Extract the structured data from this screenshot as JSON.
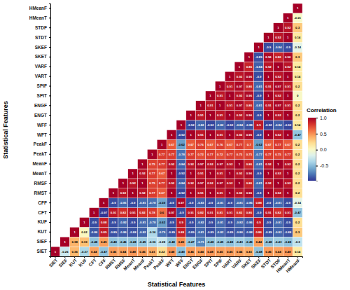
{
  "chart_data": {
    "type": "heatmap",
    "x_label": "Statistical Features",
    "y_label": "Statistical Features",
    "categories": [
      "SIET",
      "SIEF",
      "KUT",
      "KUF",
      "CFT",
      "CFF",
      "RMST",
      "RMSF",
      "MeanT",
      "MeanF",
      "PeakT",
      "PeakF",
      "WFT",
      "WFF",
      "ENGT",
      "ENGF",
      "SPIT",
      "SPIF",
      "VART",
      "VARF",
      "SKET",
      "SKEF",
      "STDT",
      "STDF",
      "HMeanT",
      "HMeanF"
    ],
    "values": [
      [
        1,
        -0.26,
        0.36,
        -0.37,
        0.44,
        -0.47,
        0.46,
        0.44,
        0.48,
        0.45,
        0.41,
        0.22,
        0.48,
        -0.49,
        0.46,
        0.44,
        0.48,
        0.45,
        0.46,
        0.44,
        0.41,
        -0.48,
        0.46,
        0.44,
        0.48,
        0.14
      ],
      [
        1,
        0.38,
        0.33,
        -0.48,
        0.45,
        -0.48,
        -0.46,
        -0.48,
        -0.45,
        -0.36,
        -0.28,
        -0.48,
        0.49,
        -0.47,
        -0.71,
        -0.48,
        -0.45,
        -0.48,
        -0.43,
        -0.49,
        0.44,
        -0.48,
        -0.43,
        -0.48,
        -0.3
      ],
      [
        1,
        0.02,
        -0.86,
        0.89,
        -0.89,
        -0.86,
        -0.88,
        -0.82,
        -0.36,
        -0.79,
        -0.89,
        0.88,
        -0.89,
        -0.81,
        -0.89,
        -0.82,
        -0.89,
        -0.86,
        -0.88,
        0.86,
        -0.89,
        -0.82,
        -0.88,
        0.3
      ],
      [
        1,
        -0.9,
        0.88,
        -0.9,
        -0.82,
        -0.9,
        -0.81,
        -0.78,
        -0.62,
        -0.9,
        0.9,
        -0.9,
        -0.82,
        -0.9,
        -0.81,
        -0.9,
        -0.82,
        -0.86,
        0.9,
        -0.9,
        -0.81,
        -0.9,
        0.2
      ],
      [
        1,
        -0.97,
        0.91,
        0.82,
        0.91,
        0.82,
        0.78,
        0.6,
        0.97,
        -0.9,
        0.91,
        0.82,
        0.91,
        0.81,
        0.91,
        0.82,
        0.86,
        -0.9,
        0.91,
        0.82,
        0.91,
        -0.47
      ],
      [
        1,
        -0.9,
        -0.81,
        -0.9,
        -0.81,
        -0.78,
        -0.59,
        -0.9,
        0.97,
        -0.9,
        -0.83,
        -0.9,
        -0.81,
        -0.9,
        -0.81,
        -0.85,
        0.88,
        -0.9,
        -0.81,
        -0.9,
        -0.14
      ],
      [
        1,
        0.92,
        1,
        0.92,
        0.77,
        0.67,
        1,
        -0.92,
        1,
        0.91,
        1,
        0.91,
        1,
        0.92,
        0.96,
        -0.9,
        1,
        0.92,
        1,
        0.2
      ],
      [
        1,
        0.92,
        1,
        0.75,
        0.77,
        0.92,
        -0.84,
        0.92,
        0.97,
        0.92,
        0.97,
        0.92,
        1,
        0.86,
        -0.81,
        0.92,
        1,
        0.92,
        0.2
      ],
      [
        1,
        0.92,
        0.77,
        0.67,
        1,
        -0.92,
        1,
        0.91,
        1,
        0.91,
        1,
        0.92,
        0.96,
        -0.9,
        1,
        0.92,
        1,
        0.2
      ],
      [
        1,
        0.75,
        0.77,
        0.92,
        -0.84,
        0.92,
        0.97,
        0.92,
        0.97,
        0.92,
        1,
        0.86,
        -0.81,
        0.92,
        1,
        0.92,
        0.2
      ],
      [
        1,
        0.77,
        0.77,
        -0.78,
        0.77,
        0.72,
        0.77,
        0.72,
        0.77,
        0.75,
        0.75,
        -0.77,
        0.77,
        0.75,
        0.77,
        0.2
      ],
      [
        1,
        0.67,
        -0.62,
        0.67,
        0.76,
        0.67,
        0.76,
        0.67,
        0.77,
        0.7,
        -0.62,
        0.67,
        0.77,
        0.67,
        0.2
      ],
      [
        1,
        -0.92,
        1,
        0.91,
        1,
        0.91,
        1,
        0.92,
        0.96,
        -0.9,
        1,
        0.92,
        1,
        -0.47
      ],
      [
        1,
        -0.92,
        -0.82,
        -0.92,
        -0.82,
        -0.92,
        -0.84,
        -0.88,
        0.9,
        -0.92,
        -0.84,
        -0.92,
        0.14
      ],
      [
        1,
        0.91,
        1,
        0.91,
        1,
        0.92,
        0.96,
        -0.9,
        1,
        0.92,
        1,
        0.2
      ],
      [
        1,
        0.91,
        1,
        0.91,
        0.97,
        0.86,
        -0.81,
        0.91,
        0.97,
        0.91,
        0.2
      ],
      [
        1,
        0.91,
        1,
        0.92,
        0.96,
        -0.9,
        1,
        0.92,
        1,
        0
      ],
      [
        1,
        0.91,
        0.97,
        0.86,
        -0.81,
        0.91,
        0.97,
        0.91,
        0.2
      ],
      [
        1,
        0.92,
        0.96,
        -0.9,
        1,
        0.92,
        1,
        0.14
      ],
      [
        1,
        0.86,
        -0.84,
        0.92,
        1,
        0.92,
        0.14
      ],
      [
        1,
        -0.89,
        0.96,
        0.86,
        0.96,
        0.3
      ],
      [
        1,
        -0.9,
        -0.84,
        -0.9,
        -0.14
      ],
      [
        1,
        0.92,
        1,
        0.14
      ],
      [
        1,
        0.92,
        0.3
      ],
      [
        1,
        -0.01
      ],
      [
        1
      ]
    ],
    "data_labels": true,
    "colorbar_label": "Correlation",
    "colorbar_lim": [
      -0.97,
      1
    ],
    "colorbar_ticks": [
      {
        "value": 1,
        "label": "1.0"
      },
      {
        "value": 0.5,
        "label": "0.5"
      },
      {
        "value": 0,
        "label": "0.0"
      },
      -0.5
    ]
  }
}
